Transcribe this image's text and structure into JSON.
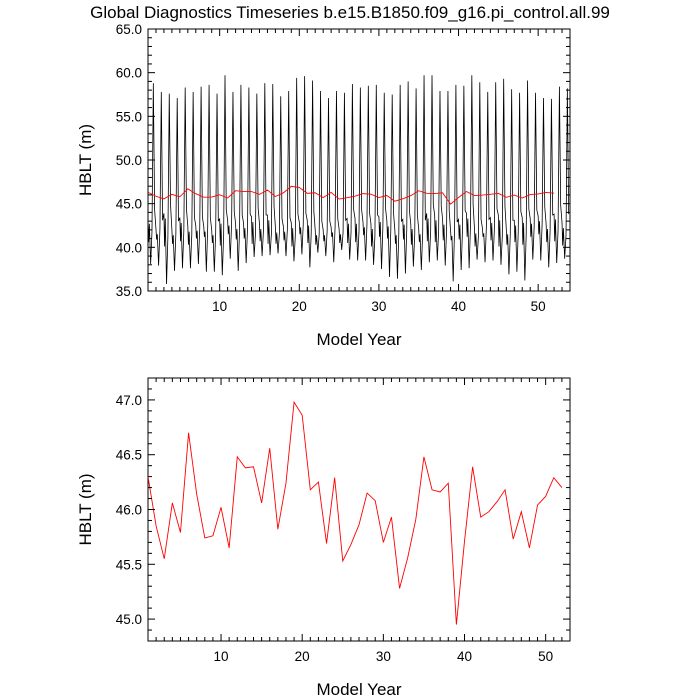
{
  "title": "Global Diagnostics Timeseries b.e15.B1850.f09_g16.pi_control.all.99",
  "chart_data": [
    {
      "type": "line",
      "xlabel": "Model Year",
      "ylabel": "HBLT (m)",
      "xlim": [
        1,
        54
      ],
      "ylim": [
        35,
        65
      ],
      "xticks": [
        "10",
        "20",
        "30",
        "40",
        "50"
      ],
      "yticks": [
        "35.0",
        "40.0",
        "45.0",
        "50.0",
        "55.0",
        "60.0",
        "65.0"
      ],
      "series": [
        {
          "color": "#000000",
          "style": "monthly",
          "x_start": 1,
          "step": 0.0833,
          "peaks": [
            58.8,
            57.8,
            57.6,
            57.1,
            58.3,
            57.8,
            58.4,
            58.6,
            57.6,
            59.7,
            57.8,
            58.6,
            58.3,
            57.6,
            58.8,
            58.7,
            57.3,
            57.9,
            59.4,
            59.6,
            59.1,
            57.9,
            57.1,
            57.9,
            57.7,
            58.7,
            58.3,
            58.5,
            58.6,
            57.7,
            57.5,
            58.6,
            59.0,
            58.2,
            59.7,
            59.7,
            57.9,
            57.9,
            58.6,
            58.5,
            59.7,
            58.9,
            57.8,
            58.9,
            59.3,
            58.1,
            57.7,
            59.1,
            57.7,
            57.1,
            57.0,
            58.4,
            58.2
          ],
          "troughs": [
            38.1,
            37.9,
            35.8,
            37.3,
            37.6,
            37.6,
            38.1,
            37.2,
            37.2,
            36.8,
            38.7,
            37.3,
            38.2,
            38.9,
            39.0,
            39.1,
            39.3,
            39.0,
            38.4,
            39.2,
            37.7,
            39.4,
            39.0,
            38.3,
            39.7,
            38.6,
            38.5,
            38.5,
            38.0,
            37.5,
            36.6,
            36.4,
            37.0,
            37.8,
            37.4,
            38.3,
            38.5,
            37.9,
            36.1,
            37.4,
            37.6,
            38.6,
            38.3,
            38.5,
            38.0,
            36.9,
            37.2,
            36.2,
            38.6,
            38.5,
            37.7,
            38.2,
            38.7
          ],
          "mid_highs": [
            43.3,
            42.1,
            43.9,
            42.0,
            43.4,
            42.4,
            42.5,
            42.4,
            42.0,
            43.3,
            43.1,
            42.7,
            42.8,
            43.5,
            42.7,
            43.7,
            42.3,
            42.4,
            42.8,
            42.9,
            43.1,
            42.0,
            42.0,
            42.3,
            42.1,
            43.3,
            43.3,
            42.9,
            42.7,
            43.5,
            43.0,
            42.0,
            43.2,
            42.7,
            42.1,
            43.9,
            43.7,
            43.2,
            41.9,
            43.2,
            43.9,
            42.2,
            42.2,
            43.4,
            43.7,
            42.1,
            43.1,
            43.4,
            43.3,
            43.6,
            42.7,
            43.8,
            42.8
          ],
          "mid_lows": [
            40.6,
            40.9,
            40.1,
            40.4,
            40.7,
            40.3,
            41.0,
            41.2,
            40.5,
            40.2,
            41.5,
            40.9,
            41.0,
            40.4,
            40.7,
            40.4,
            40.4,
            40.8,
            40.1,
            41.5,
            40.5,
            40.3,
            40.7,
            41.2,
            40.5,
            40.5,
            40.6,
            41.4,
            40.1,
            41.2,
            41.0,
            40.4,
            40.9,
            40.3,
            40.6,
            40.7,
            40.6,
            40.8,
            40.8,
            40.9,
            41.2,
            40.1,
            41.2,
            40.8,
            40.1,
            40.3,
            40.6,
            40.3,
            41.2,
            41.5,
            40.6,
            40.7,
            40.2
          ]
        },
        {
          "color": "#ff0000",
          "style": "annual",
          "x_start": 1,
          "values": [
            46.3,
            45.85,
            45.55,
            46.06,
            45.79,
            46.7,
            46.14,
            45.74,
            45.76,
            46.02,
            45.65,
            46.48,
            46.38,
            46.39,
            46.06,
            46.56,
            45.82,
            46.24,
            46.98,
            46.86,
            46.18,
            46.25,
            45.69,
            46.29,
            45.53,
            45.68,
            45.86,
            46.15,
            46.08,
            45.7,
            45.93,
            45.28,
            45.56,
            45.91,
            46.48,
            46.18,
            46.16,
            46.24,
            44.95,
            45.71,
            46.39,
            45.93,
            45.98,
            46.07,
            46.18,
            45.73,
            45.98,
            45.65,
            46.04,
            46.12,
            46.29,
            46.2
          ]
        }
      ]
    },
    {
      "type": "line",
      "xlabel": "Model Year",
      "ylabel": "HBLT (m)",
      "xlim": [
        1,
        53
      ],
      "ylim": [
        44.8,
        47.2
      ],
      "xticks": [
        "10",
        "20",
        "30",
        "40",
        "50"
      ],
      "yticks": [
        "45.0",
        "45.5",
        "46.0",
        "46.5",
        "47.0"
      ],
      "series": [
        {
          "color": "#ff0000",
          "x_start": 1,
          "values": [
            46.3,
            45.85,
            45.55,
            46.06,
            45.79,
            46.7,
            46.14,
            45.74,
            45.76,
            46.02,
            45.65,
            46.48,
            46.38,
            46.39,
            46.06,
            46.56,
            45.82,
            46.24,
            46.98,
            46.86,
            46.18,
            46.25,
            45.69,
            46.29,
            45.53,
            45.68,
            45.86,
            46.15,
            46.08,
            45.7,
            45.93,
            45.28,
            45.56,
            45.91,
            46.48,
            46.18,
            46.16,
            46.24,
            44.95,
            45.71,
            46.39,
            45.93,
            45.98,
            46.07,
            46.18,
            45.73,
            45.98,
            45.65,
            46.04,
            46.12,
            46.29,
            46.2
          ]
        }
      ]
    }
  ]
}
